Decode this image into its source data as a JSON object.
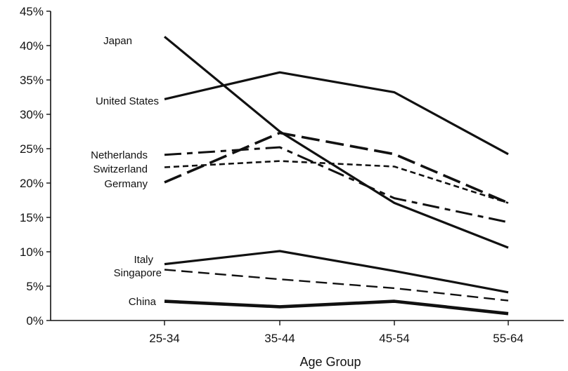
{
  "chart_data": {
    "type": "line",
    "title": "",
    "xlabel": "Age Group",
    "ylabel": "",
    "categories": [
      "25-34",
      "35-44",
      "45-54",
      "55-64"
    ],
    "ylim": [
      0,
      45
    ],
    "yticks": [
      0,
      5,
      10,
      15,
      20,
      25,
      30,
      35,
      40,
      45
    ],
    "ytick_labels": [
      "0%",
      "5%",
      "10%",
      "15%",
      "20%",
      "25%",
      "30%",
      "35%",
      "40%",
      "45%"
    ],
    "grid": false,
    "legend": "labels at left of each line",
    "series": [
      {
        "name": "Japan",
        "values": [
          41.3,
          27.5,
          17.1,
          10.6
        ],
        "style": "solid-thick"
      },
      {
        "name": "United States",
        "values": [
          32.2,
          36.1,
          33.2,
          24.2
        ],
        "style": "solid-gray"
      },
      {
        "name": "Netherlands",
        "values": [
          24.1,
          25.2,
          17.8,
          14.3
        ],
        "style": "dash-dot"
      },
      {
        "name": "Switzerland",
        "values": [
          22.3,
          23.2,
          22.4,
          17.1
        ],
        "style": "short-dash"
      },
      {
        "name": "Germany",
        "values": [
          20.1,
          27.3,
          24.2,
          17.1
        ],
        "style": "long-dash"
      },
      {
        "name": "Italy",
        "values": [
          8.2,
          10.1,
          7.2,
          4.1
        ],
        "style": "solid-gray"
      },
      {
        "name": "Singapore",
        "values": [
          7.4,
          6.0,
          4.7,
          2.9
        ],
        "style": "long-dash-thin"
      },
      {
        "name": "China",
        "values": [
          2.8,
          2.0,
          2.8,
          1.0
        ],
        "style": "solid-bold"
      }
    ]
  }
}
